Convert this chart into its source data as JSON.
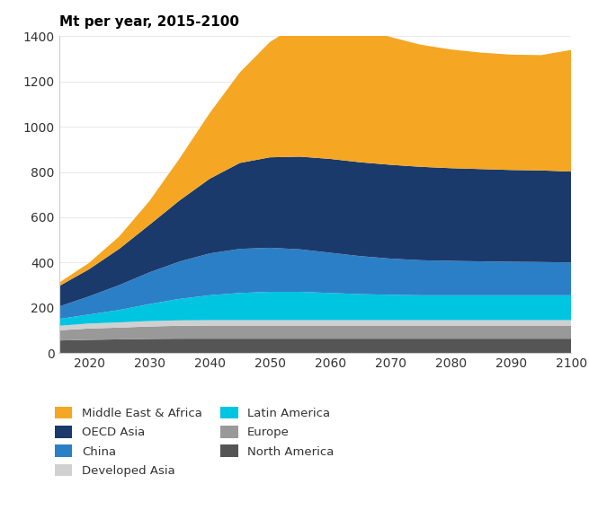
{
  "title": "Mt per year, 2015-2100",
  "years": [
    2015,
    2020,
    2025,
    2030,
    2035,
    2040,
    2045,
    2050,
    2055,
    2060,
    2065,
    2070,
    2075,
    2080,
    2085,
    2090,
    2095,
    2100
  ],
  "series": {
    "North America": [
      55,
      58,
      60,
      62,
      63,
      63,
      63,
      63,
      63,
      63,
      63,
      63,
      63,
      63,
      63,
      63,
      63,
      63
    ],
    "Europe": [
      45,
      50,
      52,
      55,
      57,
      58,
      58,
      58,
      58,
      58,
      58,
      58,
      58,
      58,
      58,
      58,
      58,
      58
    ],
    "Developed Asia": [
      20,
      22,
      23,
      24,
      24,
      24,
      24,
      24,
      24,
      24,
      24,
      24,
      24,
      24,
      24,
      24,
      24,
      24
    ],
    "Latin America": [
      30,
      40,
      55,
      75,
      95,
      110,
      120,
      125,
      125,
      120,
      115,
      112,
      110,
      110,
      110,
      110,
      110,
      110
    ],
    "China": [
      55,
      80,
      110,
      140,
      165,
      185,
      195,
      195,
      188,
      178,
      168,
      160,
      155,
      152,
      150,
      148,
      147,
      145
    ],
    "OECD Asia": [
      90,
      120,
      160,
      210,
      270,
      330,
      380,
      400,
      410,
      415,
      415,
      415,
      413,
      410,
      408,
      406,
      405,
      402
    ],
    "Middle East & Africa": [
      15,
      28,
      55,
      105,
      185,
      290,
      400,
      510,
      590,
      610,
      595,
      565,
      540,
      525,
      515,
      510,
      510,
      538
    ]
  },
  "colors": {
    "North America": "#555555",
    "Europe": "#999999",
    "Developed Asia": "#d0d0d0",
    "Latin America": "#00c5e0",
    "China": "#2b7fc7",
    "OECD Asia": "#1a3a6b",
    "Middle East & Africa": "#f5a623"
  },
  "ylim": [
    0,
    1400
  ],
  "yticks": [
    0,
    200,
    400,
    600,
    800,
    1000,
    1200,
    1400
  ],
  "xticks": [
    2020,
    2030,
    2040,
    2050,
    2060,
    2070,
    2080,
    2090,
    2100
  ],
  "left_legend": [
    "Middle East & Africa",
    "OECD Asia",
    "China",
    "Developed Asia"
  ],
  "right_legend": [
    "Latin America",
    "Europe",
    "North America"
  ],
  "background_color": "#ffffff"
}
